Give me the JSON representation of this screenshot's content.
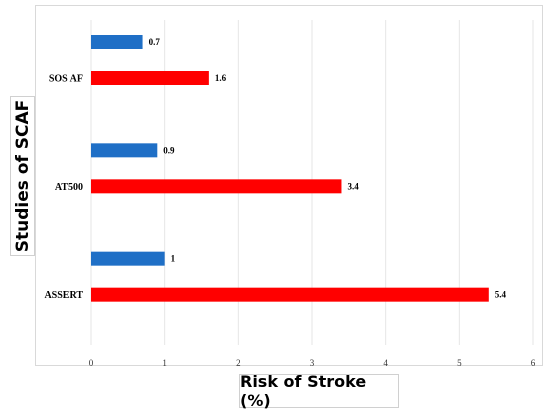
{
  "chart_data": {
    "type": "bar",
    "orientation": "horizontal",
    "categories": [
      "SOS AF",
      "AT500",
      "ASSERT"
    ],
    "series": [
      {
        "color": "#1f6fc6",
        "values": [
          0.7,
          0.9,
          1.0
        ],
        "labels": [
          "0.7",
          "0.9",
          "1"
        ]
      },
      {
        "color": "#ff0000",
        "values": [
          1.6,
          3.4,
          5.4
        ],
        "labels": [
          "1.6",
          "3.4",
          "5.4"
        ]
      }
    ],
    "xlabel": "Risk of Stroke (%)",
    "ylabel": "Studies of SCAF",
    "xlim": [
      0,
      6
    ],
    "xticks": [
      "0",
      "1",
      "2",
      "3",
      "4",
      "5",
      "6"
    ],
    "grid": "vertical",
    "legend": "none"
  }
}
